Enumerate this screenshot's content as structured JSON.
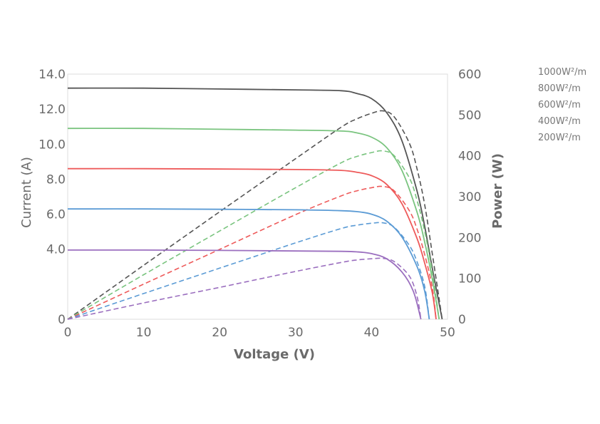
{
  "chart_data": {
    "type": "line",
    "xlabel": "Voltage (V)",
    "ylabel": "Current (A)",
    "y2label": "Power (W)",
    "xlim": [
      0,
      50
    ],
    "ylim": [
      0,
      14
    ],
    "y2lim": [
      0,
      600
    ],
    "x_ticks": [
      "0",
      "10",
      "20",
      "30",
      "40",
      "50"
    ],
    "y_ticks": [
      "0",
      "4.0",
      "6.0",
      "8.0",
      "10.0",
      "12.0",
      "14.0"
    ],
    "y_tick_values": [
      0,
      4,
      6,
      8,
      10,
      12,
      14
    ],
    "y2_ticks": [
      "0",
      "100",
      "200",
      "300",
      "400",
      "500",
      "600"
    ],
    "legend_position": "top-right",
    "legend": [
      "1000W²/m",
      "800W²/m",
      "600W²/m",
      "400W²/m",
      "200W²/m"
    ],
    "series": [
      {
        "color": "#555555",
        "current": {
          "x": [
            0,
            10,
            20,
            30,
            36,
            38,
            40,
            42,
            44,
            46,
            47,
            48,
            49.3
          ],
          "y": [
            13.2,
            13.2,
            13.15,
            13.1,
            13.05,
            12.9,
            12.6,
            11.8,
            10.2,
            7.3,
            5.3,
            2.9,
            0
          ]
        },
        "power": {
          "x": [
            0,
            10,
            20,
            30,
            36,
            38,
            40,
            41.5,
            43,
            45,
            46,
            47,
            48,
            49.3
          ],
          "y": [
            0,
            132,
            263,
            393,
            470,
            490,
            504,
            510,
            495,
            430,
            367,
            280,
            160,
            0
          ]
        }
      },
      {
        "color": "#7ac47f",
        "current": {
          "x": [
            0,
            10,
            20,
            30,
            36,
            38,
            40,
            42,
            44,
            46,
            47,
            48,
            48.9
          ],
          "y": [
            10.9,
            10.9,
            10.85,
            10.8,
            10.75,
            10.65,
            10.4,
            9.8,
            8.5,
            6.1,
            4.4,
            2.3,
            0
          ]
        },
        "power": {
          "x": [
            0,
            10,
            20,
            30,
            36,
            38,
            40,
            41.5,
            43,
            45,
            46,
            47,
            48,
            48.9
          ],
          "y": [
            0,
            109,
            216,
            322,
            383,
            398,
            408,
            412,
            400,
            345,
            290,
            215,
            115,
            0
          ]
        }
      },
      {
        "color": "#ee5a5a",
        "current": {
          "x": [
            0,
            10,
            20,
            30,
            36,
            38,
            40,
            42,
            44,
            46,
            47,
            48,
            48.5
          ],
          "y": [
            8.6,
            8.6,
            8.58,
            8.55,
            8.5,
            8.4,
            8.2,
            7.7,
            6.6,
            4.6,
            3.2,
            1.5,
            0
          ]
        },
        "power": {
          "x": [
            0,
            10,
            20,
            30,
            36,
            38,
            40,
            41.5,
            43,
            45,
            46,
            47,
            48,
            48.5
          ],
          "y": [
            0,
            86,
            171,
            256,
            302,
            314,
            322,
            325,
            314,
            265,
            220,
            158,
            78,
            0
          ]
        }
      },
      {
        "color": "#5b9bd5",
        "current": {
          "x": [
            0,
            10,
            20,
            30,
            36,
            38,
            40,
            42,
            44,
            46,
            47,
            47.6
          ],
          "y": [
            6.3,
            6.3,
            6.28,
            6.25,
            6.2,
            6.15,
            6.0,
            5.6,
            4.7,
            3.0,
            1.6,
            0
          ]
        },
        "power": {
          "x": [
            0,
            10,
            20,
            30,
            36,
            38,
            40,
            41.5,
            43,
            45,
            46,
            47,
            47.6
          ],
          "y": [
            0,
            63,
            125,
            187,
            222,
            230,
            235,
            236,
            225,
            180,
            140,
            80,
            0
          ]
        }
      },
      {
        "color": "#9b6fbf",
        "current": {
          "x": [
            0,
            10,
            20,
            30,
            36,
            38,
            40,
            42,
            44,
            45.5,
            46.5
          ],
          "y": [
            3.95,
            3.95,
            3.93,
            3.9,
            3.88,
            3.85,
            3.75,
            3.45,
            2.7,
            1.6,
            0
          ]
        },
        "power": {
          "x": [
            0,
            10,
            20,
            30,
            36,
            38,
            40,
            41.5,
            43,
            45,
            46,
            46.5
          ],
          "y": [
            0,
            40,
            78,
            117,
            139,
            145,
            148,
            149,
            141,
            105,
            55,
            0
          ]
        }
      }
    ]
  }
}
